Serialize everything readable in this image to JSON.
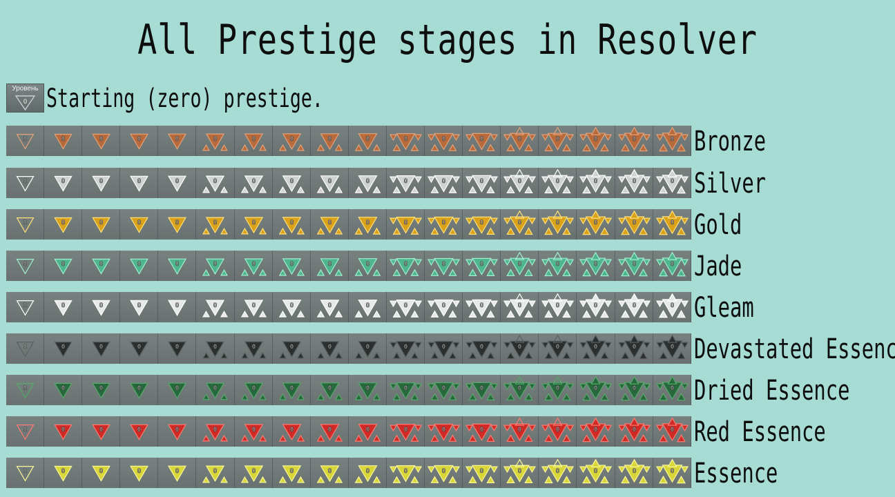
{
  "title": "All Prestige stages in Resolver",
  "start": {
    "badge_text": "Уровень",
    "level": "0",
    "label": "Starting (zero) prestige."
  },
  "level_text": "0",
  "stages_per_tier": 18,
  "tiers": [
    {
      "name": "Bronze",
      "color": "#b86a3a",
      "hi": "#e3a27a",
      "bg": "#6f7877"
    },
    {
      "name": "Silver",
      "color": "#cfd3d3",
      "hi": "#ffffff",
      "bg": "#7a8483"
    },
    {
      "name": "Gold",
      "color": "#d9a21a",
      "hi": "#ffe07a",
      "bg": "#767e75"
    },
    {
      "name": "Jade",
      "color": "#4fb58f",
      "hi": "#9ff0cf",
      "bg": "#6d7776"
    },
    {
      "name": "Gleam",
      "color": "#e6e9e9",
      "hi": "#ffffff",
      "bg": "#7d8786"
    },
    {
      "name": "Devastated Essence",
      "color": "#2b2f2f",
      "hi": "#5a6161",
      "bg": "#6b7473"
    },
    {
      "name": "Dried Essence",
      "color": "#27693c",
      "hi": "#56a86a",
      "bg": "#667170"
    },
    {
      "name": "Red Essence",
      "color": "#cf2a25",
      "hi": "#ff7a70",
      "bg": "#737c7b"
    },
    {
      "name": "Essence",
      "color": "#d9d63a",
      "hi": "#fbf79a",
      "bg": "#7a8381"
    }
  ]
}
